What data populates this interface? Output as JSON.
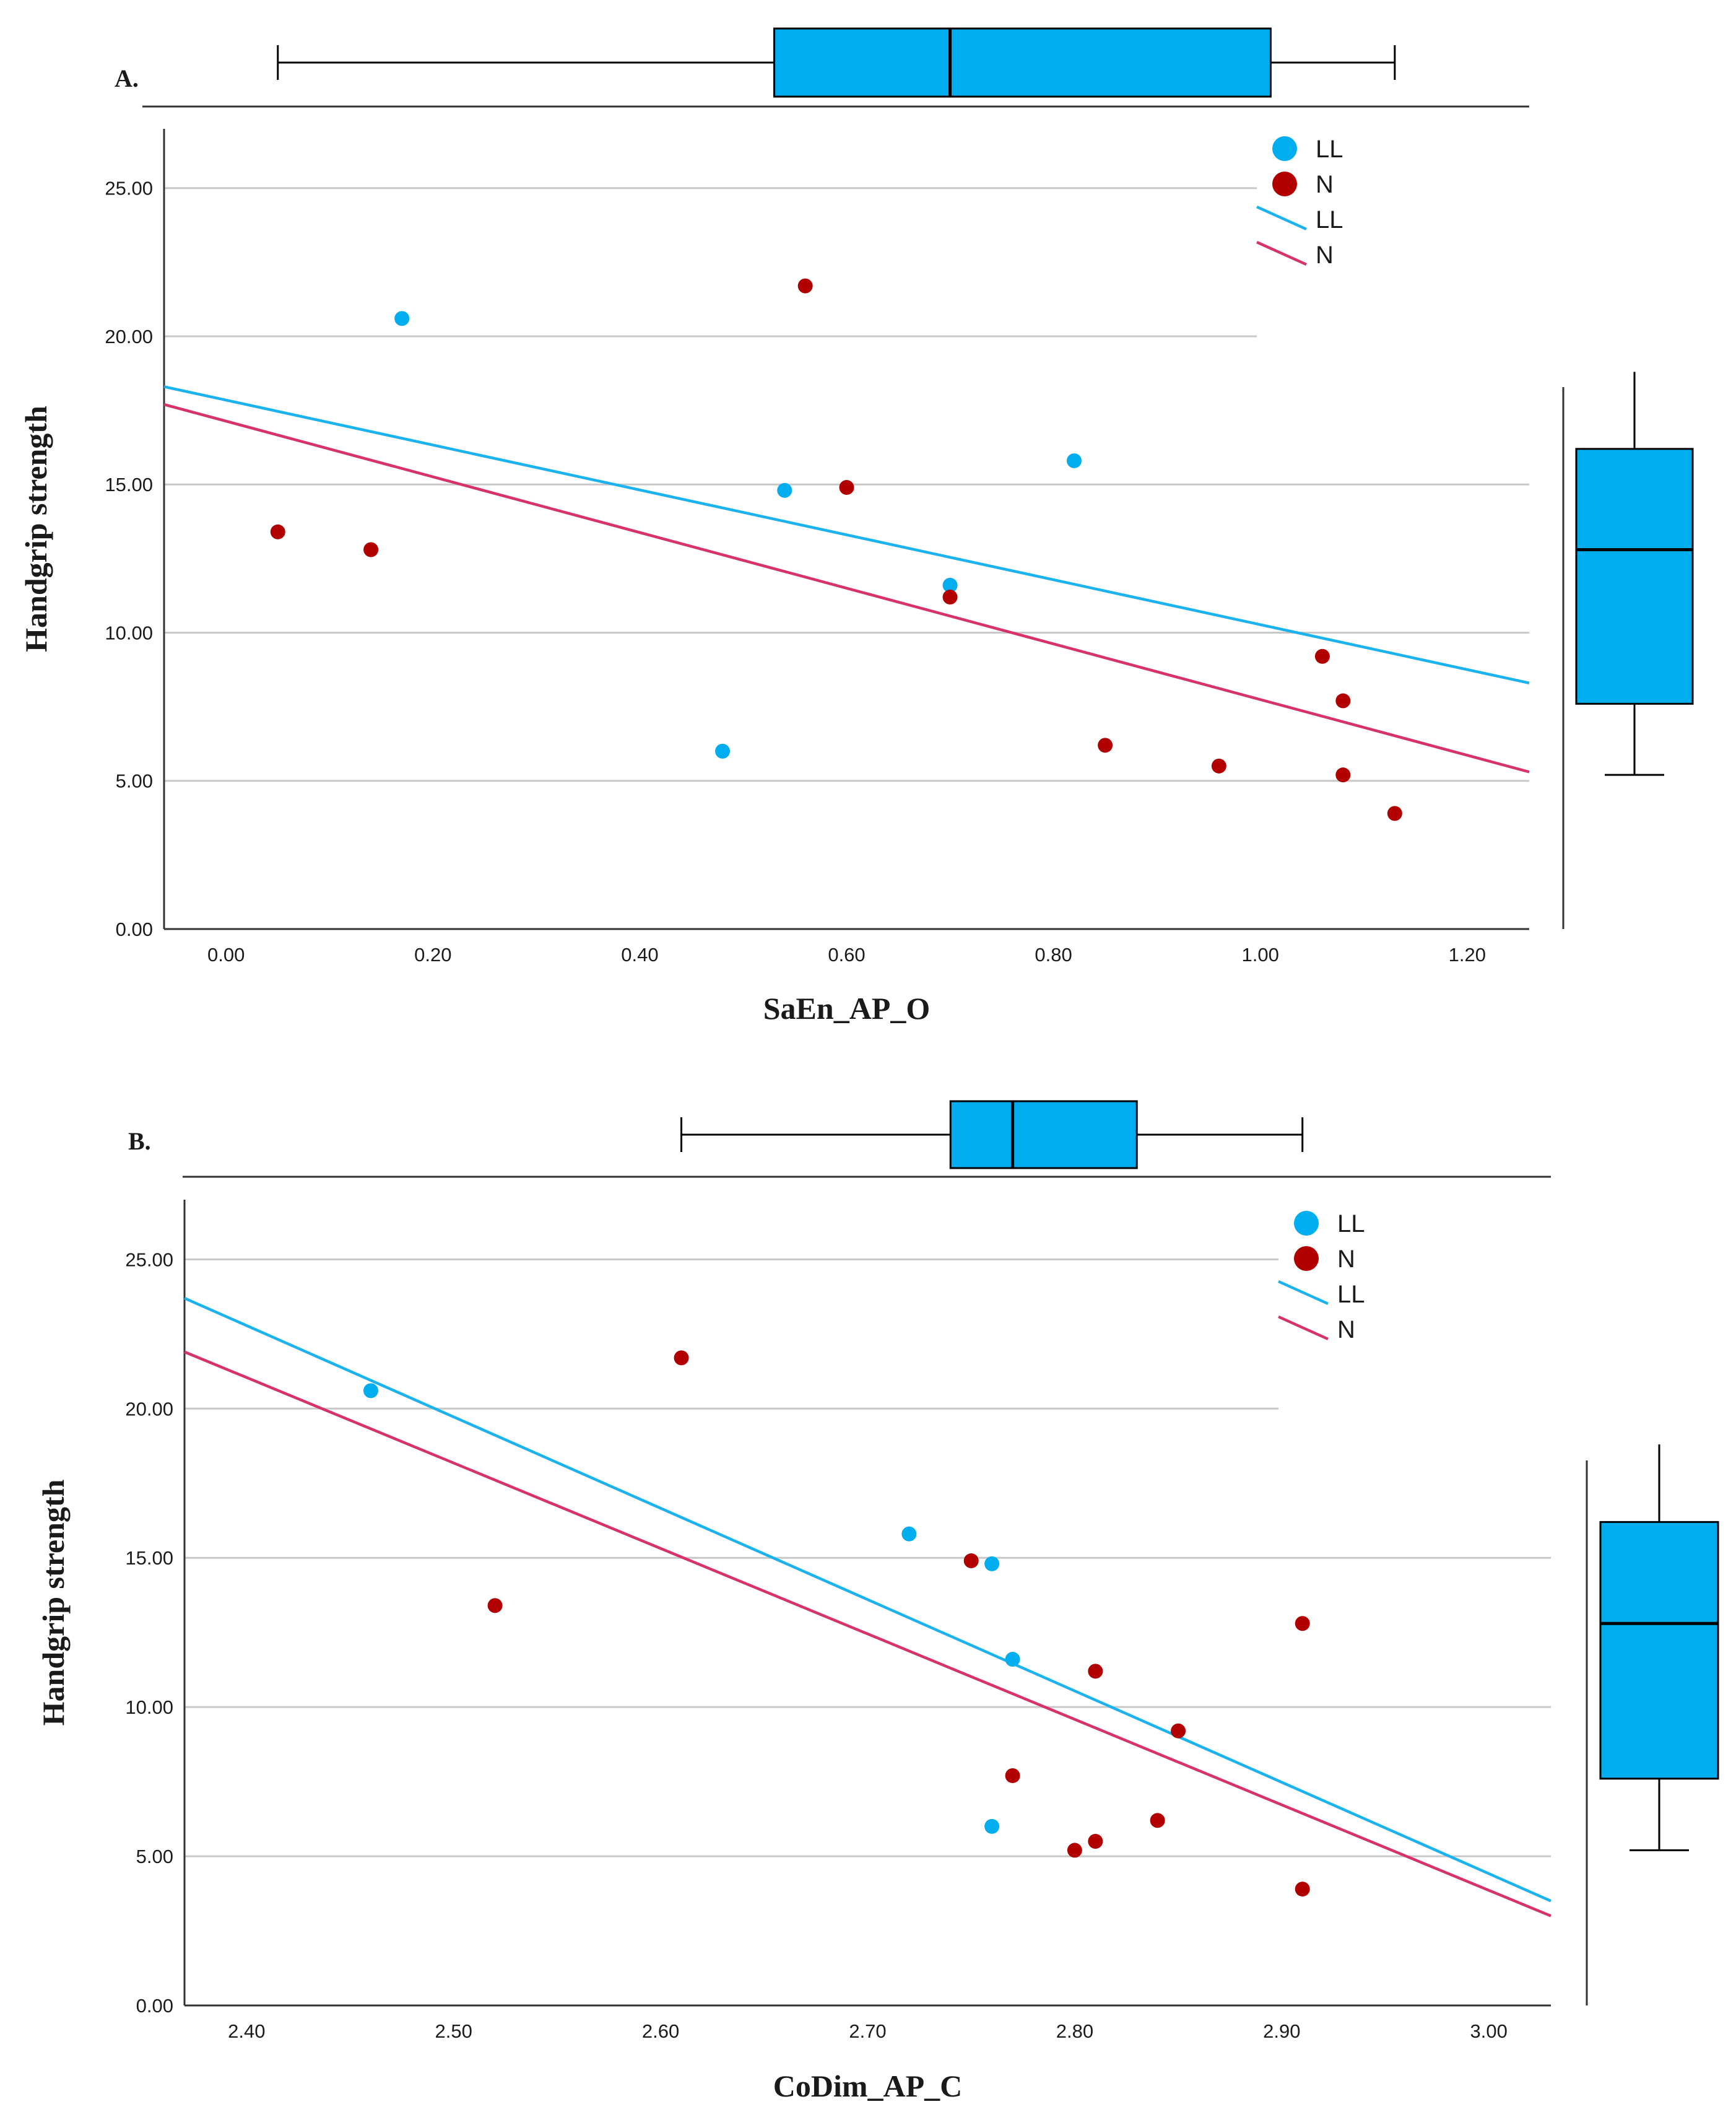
{
  "colors": {
    "LL": "#00adef",
    "N": "#b20000",
    "LL_line": "#1ab2ef",
    "N_line": "#d8326a",
    "box_fill": "#00adef",
    "grid": "#c8c8c8",
    "axis": "#333333"
  },
  "chart_data": [
    {
      "type": "scatter",
      "panel_label": "A.",
      "xlabel": "SaEn_AP_O",
      "ylabel": "Handgrip strength",
      "xlim": [
        -0.06,
        1.26
      ],
      "ylim": [
        0,
        27
      ],
      "x_ticks": [
        0.0,
        0.2,
        0.4,
        0.6,
        0.8,
        1.0,
        1.2
      ],
      "x_tick_labels": [
        "0.00",
        "0.20",
        "0.40",
        "0.60",
        "0.80",
        "1.00",
        "1.20"
      ],
      "y_ticks": [
        0,
        5,
        10,
        15,
        20,
        25
      ],
      "y_tick_labels": [
        "0.00",
        "5.00",
        "10.00",
        "15.00",
        "20.00",
        "25.00"
      ],
      "grid": "horizontal",
      "legend_position": "top-right",
      "legend": [
        {
          "label": "LL",
          "kind": "marker",
          "series": "LL"
        },
        {
          "label": "N",
          "kind": "marker",
          "series": "N"
        },
        {
          "label": "LL",
          "kind": "line",
          "series": "LL"
        },
        {
          "label": "N",
          "kind": "line",
          "series": "N"
        }
      ],
      "series": [
        {
          "name": "LL",
          "points": [
            [
              0.17,
              20.6
            ],
            [
              0.48,
              6.0
            ],
            [
              0.54,
              14.8
            ],
            [
              0.7,
              11.6
            ],
            [
              0.82,
              15.8
            ]
          ]
        },
        {
          "name": "N",
          "points": [
            [
              0.05,
              13.4
            ],
            [
              0.14,
              12.8
            ],
            [
              0.56,
              21.7
            ],
            [
              0.6,
              14.9
            ],
            [
              0.7,
              11.2
            ],
            [
              0.85,
              6.2
            ],
            [
              0.96,
              5.5
            ],
            [
              1.06,
              9.2
            ],
            [
              1.08,
              7.7
            ],
            [
              1.08,
              5.2
            ],
            [
              1.13,
              3.9
            ]
          ]
        }
      ],
      "fit_lines": [
        {
          "name": "LL",
          "x": [
            -0.06,
            1.26
          ],
          "y": [
            18.3,
            8.3
          ]
        },
        {
          "name": "N",
          "x": [
            -0.06,
            1.26
          ],
          "y": [
            17.7,
            5.3
          ]
        }
      ],
      "marginal_box_x": {
        "min": 0.05,
        "q1": 0.53,
        "median": 0.7,
        "q3": 1.01,
        "max": 1.13
      },
      "marginal_box_y": {
        "min": 5.2,
        "q1": 7.6,
        "median": 12.8,
        "q3": 16.2,
        "max": 18.8
      }
    },
    {
      "type": "scatter",
      "panel_label": "B.",
      "xlabel": "CoDim_AP_C",
      "ylabel": "Handgrip strength",
      "xlim": [
        2.37,
        3.03
      ],
      "ylim": [
        0,
        27
      ],
      "x_ticks": [
        2.4,
        2.5,
        2.6,
        2.7,
        2.8,
        2.9,
        3.0
      ],
      "x_tick_labels": [
        "2.40",
        "2.50",
        "2.60",
        "2.70",
        "2.80",
        "2.90",
        "3.00"
      ],
      "y_ticks": [
        0,
        5,
        10,
        15,
        20,
        25
      ],
      "y_tick_labels": [
        "0.00",
        "5.00",
        "10.00",
        "15.00",
        "20.00",
        "25.00"
      ],
      "grid": "horizontal",
      "legend_position": "top-right",
      "legend": [
        {
          "label": "LL",
          "kind": "marker",
          "series": "LL"
        },
        {
          "label": "N",
          "kind": "marker",
          "series": "N"
        },
        {
          "label": "LL",
          "kind": "line",
          "series": "LL"
        },
        {
          "label": "N",
          "kind": "line",
          "series": "N"
        }
      ],
      "series": [
        {
          "name": "LL",
          "points": [
            [
              2.46,
              20.6
            ],
            [
              2.72,
              15.8
            ],
            [
              2.76,
              14.8
            ],
            [
              2.77,
              11.6
            ],
            [
              2.76,
              6.0
            ]
          ]
        },
        {
          "name": "N",
          "points": [
            [
              2.52,
              13.4
            ],
            [
              2.61,
              21.7
            ],
            [
              2.75,
              14.9
            ],
            [
              2.81,
              11.2
            ],
            [
              2.85,
              9.2
            ],
            [
              2.91,
              12.8
            ],
            [
              2.77,
              7.7
            ],
            [
              2.84,
              6.2
            ],
            [
              2.81,
              5.5
            ],
            [
              2.8,
              5.2
            ],
            [
              2.91,
              3.9
            ]
          ]
        }
      ],
      "fit_lines": [
        {
          "name": "LL",
          "x": [
            2.37,
            3.03
          ],
          "y": [
            23.7,
            3.5
          ]
        },
        {
          "name": "N",
          "x": [
            2.37,
            3.03
          ],
          "y": [
            21.9,
            3.0
          ]
        }
      ],
      "marginal_box_x": {
        "min": 2.61,
        "q1": 2.74,
        "median": 2.77,
        "q3": 2.83,
        "max": 2.91
      },
      "marginal_box_y": {
        "min": 5.2,
        "q1": 7.6,
        "median": 12.8,
        "q3": 16.2,
        "max": 18.8
      }
    }
  ]
}
